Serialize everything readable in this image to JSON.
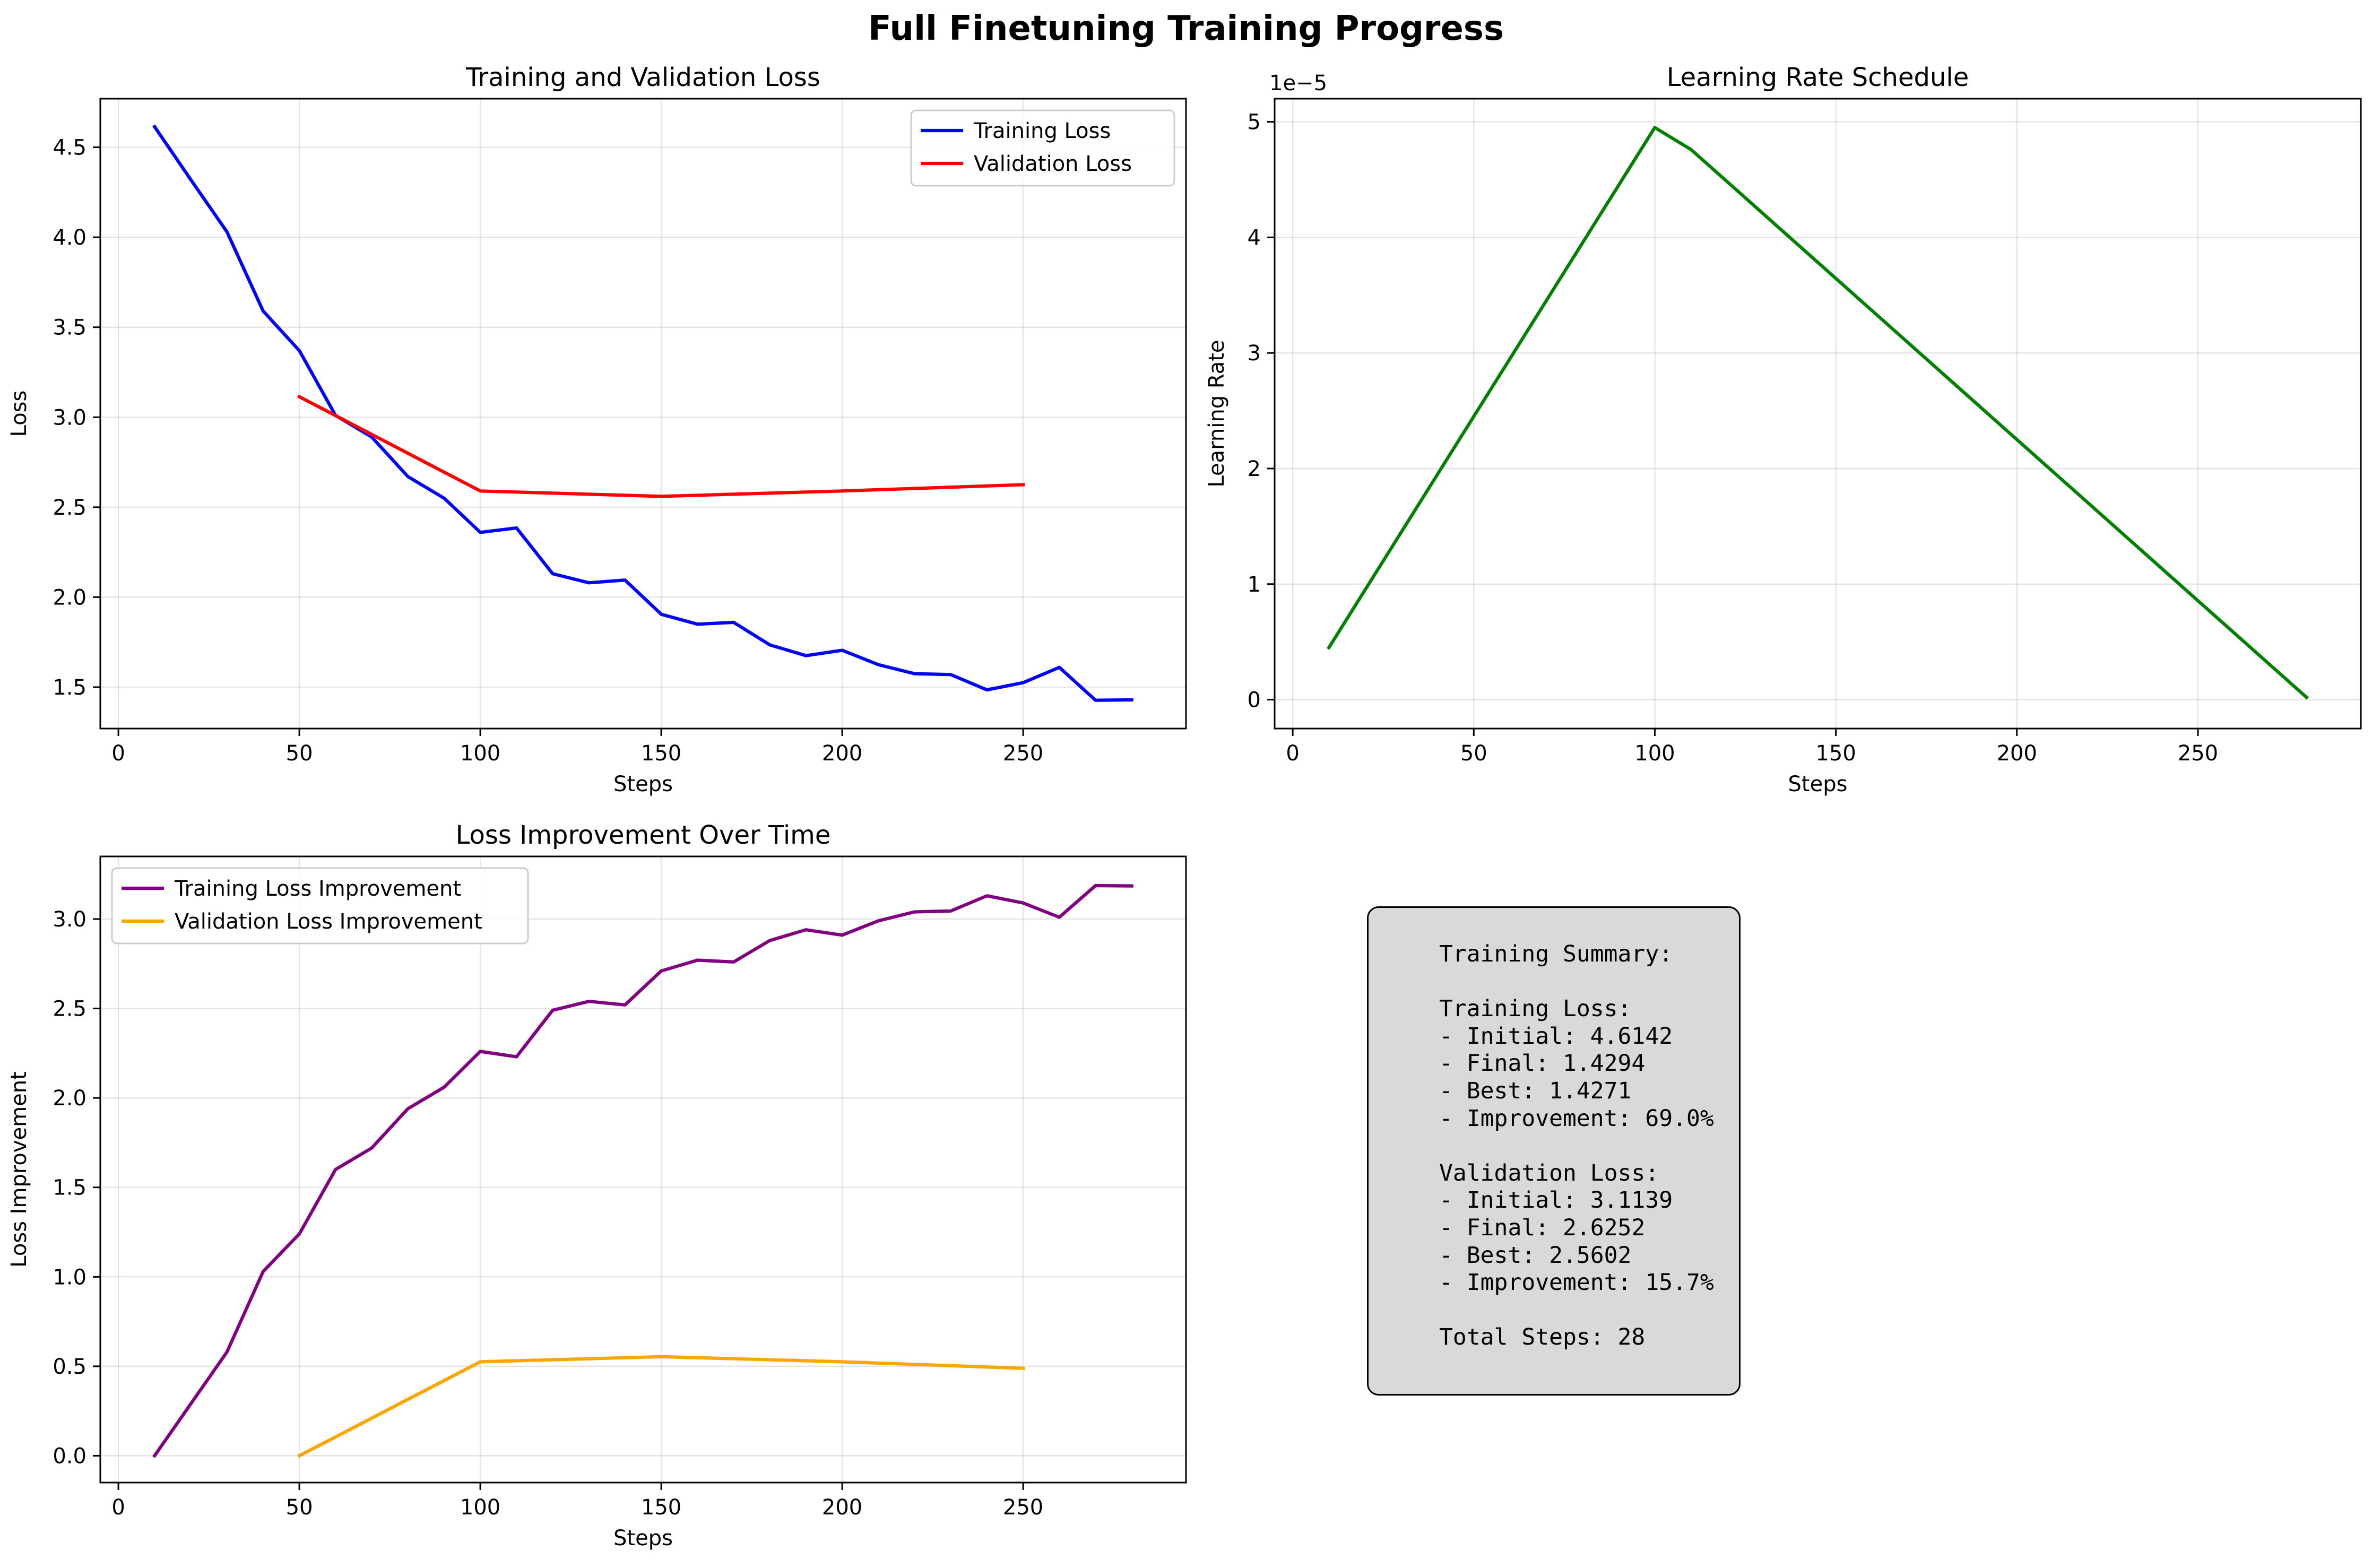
{
  "figure": {
    "title": "Full Finetuning Training Progress"
  },
  "chart_data": [
    {
      "type": "line",
      "title": "Training and Validation Loss",
      "xlabel": "Steps",
      "ylabel": "Loss",
      "xlim": [
        -5,
        295
      ],
      "ylim": [
        1.27,
        4.77
      ],
      "xticks": [
        0,
        50,
        100,
        150,
        200,
        250
      ],
      "yticks": [
        1.5,
        2.0,
        2.5,
        3.0,
        3.5,
        4.0,
        4.5
      ],
      "ytick_labels": [
        "1.5",
        "2.0",
        "2.5",
        "3.0",
        "3.5",
        "4.0",
        "4.5"
      ],
      "grid": true,
      "legend": "upper right",
      "series": [
        {
          "name": "Training Loss",
          "color": "#0000ff",
          "x": [
            10,
            20,
            30,
            40,
            50,
            60,
            70,
            80,
            90,
            100,
            110,
            120,
            130,
            140,
            150,
            160,
            170,
            180,
            190,
            200,
            210,
            220,
            230,
            240,
            250,
            260,
            270,
            280
          ],
          "y": [
            4.6142,
            4.32,
            4.03,
            3.59,
            3.37,
            3.01,
            2.89,
            2.67,
            2.55,
            2.36,
            2.385,
            2.13,
            2.08,
            2.095,
            1.905,
            1.85,
            1.86,
            1.735,
            1.675,
            1.705,
            1.625,
            1.575,
            1.57,
            1.485,
            1.525,
            1.61,
            1.4271,
            1.4294
          ]
        },
        {
          "name": "Validation Loss",
          "color": "#ff0000",
          "x": [
            50,
            100,
            150,
            200,
            250
          ],
          "y": [
            3.1139,
            2.59,
            2.5602,
            2.59,
            2.6252
          ]
        }
      ]
    },
    {
      "type": "line",
      "title": "Learning Rate Schedule",
      "xlabel": "Steps",
      "ylabel": "Learning Rate",
      "offset_label": "1e−5",
      "xlim": [
        -5,
        295
      ],
      "ylim": [
        -0.25,
        5.2
      ],
      "xticks": [
        0,
        50,
        100,
        150,
        200,
        250
      ],
      "yticks": [
        0,
        1,
        2,
        3,
        4,
        5
      ],
      "ytick_labels": [
        "0",
        "1",
        "2",
        "3",
        "4",
        "5"
      ],
      "grid": true,
      "series": [
        {
          "name": "",
          "color": "#008000",
          "x": [
            10,
            100,
            110,
            280
          ],
          "y": [
            0.45,
            4.95,
            4.76,
            0.02
          ]
        }
      ]
    },
    {
      "type": "line",
      "title": "Loss Improvement Over Time",
      "xlabel": "Steps",
      "ylabel": "Loss Improvement",
      "xlim": [
        -5,
        295
      ],
      "ylim": [
        -0.15,
        3.35
      ],
      "xticks": [
        0,
        50,
        100,
        150,
        200,
        250
      ],
      "yticks": [
        0.0,
        0.5,
        1.0,
        1.5,
        2.0,
        2.5,
        3.0
      ],
      "ytick_labels": [
        "0.0",
        "0.5",
        "1.0",
        "1.5",
        "2.0",
        "2.5",
        "3.0"
      ],
      "grid": true,
      "legend": "upper left",
      "series": [
        {
          "name": "Training Loss Improvement",
          "color": "#800080",
          "x": [
            10,
            20,
            30,
            40,
            50,
            60,
            70,
            80,
            90,
            100,
            110,
            120,
            130,
            140,
            150,
            160,
            170,
            180,
            190,
            200,
            210,
            220,
            230,
            240,
            250,
            260,
            270,
            280
          ],
          "y": [
            0,
            0.29,
            0.58,
            1.03,
            1.24,
            1.6,
            1.72,
            1.94,
            2.06,
            2.26,
            2.23,
            2.49,
            2.54,
            2.52,
            2.71,
            2.77,
            2.76,
            2.88,
            2.94,
            2.91,
            2.99,
            3.04,
            3.045,
            3.13,
            3.09,
            3.01,
            3.187,
            3.185
          ]
        },
        {
          "name": "Validation Loss Improvement",
          "color": "#ffa500",
          "x": [
            50,
            100,
            150,
            200,
            250
          ],
          "y": [
            0,
            0.525,
            0.5537,
            0.525,
            0.4887
          ]
        }
      ]
    }
  ],
  "summary": {
    "lines": [
      "Training Summary:",
      "",
      "Training Loss:",
      "- Initial: 4.6142",
      "- Final: 1.4294",
      "- Best: 1.4271",
      "- Improvement: 69.0%",
      "",
      "Validation Loss:",
      "- Initial: 3.1139",
      "- Final: 2.6252",
      "- Best: 2.5602",
      "- Improvement: 15.7%",
      "",
      "Total Steps: 28"
    ]
  }
}
